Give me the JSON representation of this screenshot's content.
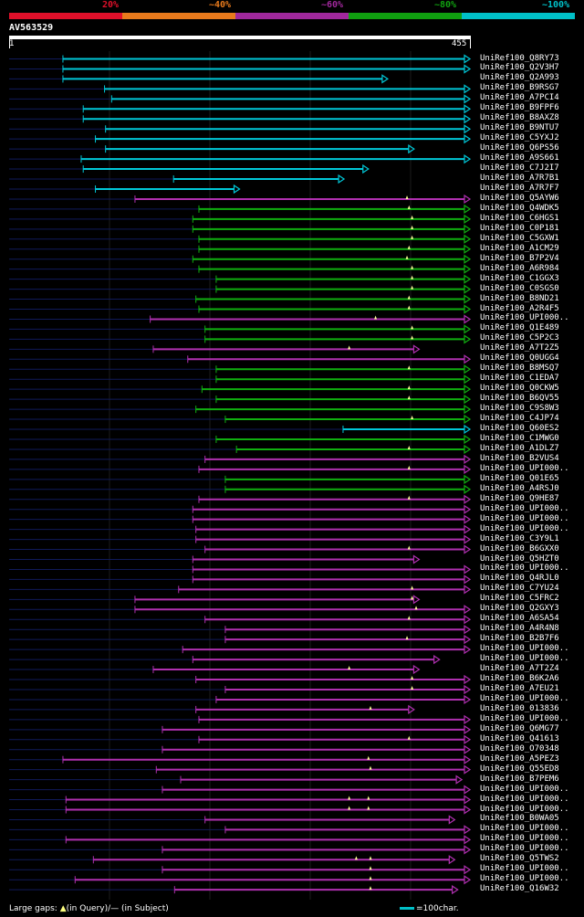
{
  "header": {
    "pct_labels": [
      "20%",
      "~40%",
      "~60%",
      "~80%",
      "~100%"
    ],
    "pct_colors": [
      "#e0102a",
      "#e87a1c",
      "#a0289c",
      "#10a010",
      "#00c0c8"
    ],
    "query_id": "AV563529",
    "ruler_start": "1",
    "ruler_end": "455"
  },
  "colors": {
    "cyan": "#00c8d8",
    "green": "#10b010",
    "purple": "#b030b0",
    "gap_marker": "#ffff99",
    "guide_line": "#101a5a"
  },
  "query_length": 455,
  "hits": [
    {
      "id": "UniRef100_Q8RY73",
      "start": 54,
      "end": 455,
      "color": "cyan",
      "gaps": []
    },
    {
      "id": "UniRef100_Q2V3H7",
      "start": 54,
      "end": 455,
      "color": "cyan",
      "gaps": []
    },
    {
      "id": "UniRef100_Q2A993",
      "start": 54,
      "end": 374,
      "color": "cyan",
      "gaps": []
    },
    {
      "id": "UniRef100_B9RSG7",
      "start": 95,
      "end": 455,
      "color": "cyan",
      "gaps": []
    },
    {
      "id": "UniRef100_A7PCI4",
      "start": 102,
      "end": 455,
      "color": "cyan",
      "gaps": []
    },
    {
      "id": "UniRef100_B9FPF6",
      "start": 74,
      "end": 455,
      "color": "cyan",
      "gaps": []
    },
    {
      "id": "UniRef100_B8AXZ8",
      "start": 74,
      "end": 455,
      "color": "cyan",
      "gaps": []
    },
    {
      "id": "UniRef100_B9NTU7",
      "start": 96,
      "end": 455,
      "color": "cyan",
      "gaps": []
    },
    {
      "id": "UniRef100_C5YXJ2",
      "start": 86,
      "end": 455,
      "color": "cyan",
      "gaps": []
    },
    {
      "id": "UniRef100_Q6PS56",
      "start": 96,
      "end": 400,
      "color": "cyan",
      "gaps": []
    },
    {
      "id": "UniRef100_A9S661",
      "start": 72,
      "end": 455,
      "color": "cyan",
      "gaps": []
    },
    {
      "id": "UniRef100_C7J2I7",
      "start": 74,
      "end": 355,
      "color": "cyan",
      "gaps": []
    },
    {
      "id": "UniRef100_A7R7B1",
      "start": 163,
      "end": 331,
      "color": "cyan",
      "gaps": []
    },
    {
      "id": "UniRef100_A7R7F7",
      "start": 86,
      "end": 228,
      "color": "cyan",
      "gaps": []
    },
    {
      "id": "UniRef100_Q5AYW6",
      "start": 125,
      "end": 455,
      "color": "purple",
      "gaps": [
        393
      ]
    },
    {
      "id": "UniRef100_Q4WDK5",
      "start": 188,
      "end": 455,
      "color": "green",
      "gaps": [
        395
      ]
    },
    {
      "id": "UniRef100_C6HGS1",
      "start": 182,
      "end": 455,
      "color": "green",
      "gaps": [
        398
      ]
    },
    {
      "id": "UniRef100_C0P181",
      "start": 182,
      "end": 455,
      "color": "green",
      "gaps": [
        398
      ]
    },
    {
      "id": "UniRef100_C5GXW1",
      "start": 188,
      "end": 455,
      "color": "green",
      "gaps": [
        398
      ]
    },
    {
      "id": "UniRef100_A1CM29",
      "start": 188,
      "end": 455,
      "color": "green",
      "gaps": [
        395
      ]
    },
    {
      "id": "UniRef100_B7P2V4",
      "start": 182,
      "end": 455,
      "color": "green",
      "gaps": [
        393
      ]
    },
    {
      "id": "UniRef100_A6R984",
      "start": 188,
      "end": 455,
      "color": "green",
      "gaps": [
        398
      ]
    },
    {
      "id": "UniRef100_C1GGX3",
      "start": 205,
      "end": 455,
      "color": "green",
      "gaps": [
        398
      ]
    },
    {
      "id": "UniRef100_C0SGS0",
      "start": 205,
      "end": 455,
      "color": "green",
      "gaps": [
        398
      ]
    },
    {
      "id": "UniRef100_B8ND21",
      "start": 185,
      "end": 455,
      "color": "green",
      "gaps": [
        395
      ]
    },
    {
      "id": "UniRef100_A2R4F5",
      "start": 188,
      "end": 455,
      "color": "green",
      "gaps": [
        395
      ]
    },
    {
      "id": "UniRef100_UPI000..",
      "start": 140,
      "end": 455,
      "color": "purple",
      "gaps": [
        362
      ]
    },
    {
      "id": "UniRef100_Q1E489",
      "start": 194,
      "end": 455,
      "color": "green",
      "gaps": [
        398
      ]
    },
    {
      "id": "UniRef100_C5P2C3",
      "start": 194,
      "end": 455,
      "color": "green",
      "gaps": [
        398
      ]
    },
    {
      "id": "UniRef100_A7T2Z5",
      "start": 143,
      "end": 405,
      "color": "purple",
      "gaps": [
        336
      ]
    },
    {
      "id": "UniRef100_Q0UGG4",
      "start": 177,
      "end": 455,
      "color": "purple",
      "gaps": []
    },
    {
      "id": "UniRef100_B8MSQ7",
      "start": 205,
      "end": 455,
      "color": "green",
      "gaps": [
        395
      ]
    },
    {
      "id": "UniRef100_C1EDA7",
      "start": 205,
      "end": 455,
      "color": "green",
      "gaps": []
    },
    {
      "id": "UniRef100_Q0CKW5",
      "start": 191,
      "end": 455,
      "color": "green",
      "gaps": [
        395
      ]
    },
    {
      "id": "UniRef100_B6QV55",
      "start": 205,
      "end": 455,
      "color": "green",
      "gaps": [
        395
      ]
    },
    {
      "id": "UniRef100_C9S8W3",
      "start": 185,
      "end": 455,
      "color": "green",
      "gaps": []
    },
    {
      "id": "UniRef100_C4JP74",
      "start": 214,
      "end": 455,
      "color": "green",
      "gaps": [
        398
      ]
    },
    {
      "id": "UniRef100_Q60ES2",
      "start": 330,
      "end": 455,
      "color": "cyan",
      "gaps": []
    },
    {
      "id": "UniRef100_C1MWG0",
      "start": 205,
      "end": 455,
      "color": "green",
      "gaps": []
    },
    {
      "id": "UniRef100_A1DLZ7",
      "start": 225,
      "end": 455,
      "color": "green",
      "gaps": [
        395
      ]
    },
    {
      "id": "UniRef100_B2VUS4",
      "start": 194,
      "end": 455,
      "color": "purple",
      "gaps": []
    },
    {
      "id": "UniRef100_UPI000..",
      "start": 188,
      "end": 455,
      "color": "purple",
      "gaps": [
        395
      ]
    },
    {
      "id": "UniRef100_Q01E65",
      "start": 214,
      "end": 455,
      "color": "green",
      "gaps": []
    },
    {
      "id": "UniRef100_A4RSJ0",
      "start": 214,
      "end": 455,
      "color": "green",
      "gaps": []
    },
    {
      "id": "UniRef100_Q9HE87",
      "start": 188,
      "end": 455,
      "color": "purple",
      "gaps": [
        395
      ]
    },
    {
      "id": "UniRef100_UPI000..",
      "start": 182,
      "end": 455,
      "color": "purple",
      "gaps": []
    },
    {
      "id": "UniRef100_UPI000..",
      "start": 182,
      "end": 455,
      "color": "purple",
      "gaps": []
    },
    {
      "id": "UniRef100_UPI000..",
      "start": 185,
      "end": 455,
      "color": "purple",
      "gaps": []
    },
    {
      "id": "UniRef100_C3Y9L1",
      "start": 185,
      "end": 455,
      "color": "purple",
      "gaps": []
    },
    {
      "id": "UniRef100_B6GXX0",
      "start": 194,
      "end": 455,
      "color": "purple",
      "gaps": [
        395
      ]
    },
    {
      "id": "UniRef100_Q5HZT0",
      "start": 182,
      "end": 405,
      "color": "purple",
      "gaps": []
    },
    {
      "id": "UniRef100_UPI000..",
      "start": 182,
      "end": 455,
      "color": "purple",
      "gaps": []
    },
    {
      "id": "UniRef100_Q4RJL0",
      "start": 182,
      "end": 455,
      "color": "purple",
      "gaps": []
    },
    {
      "id": "UniRef100_C7YU24",
      "start": 168,
      "end": 455,
      "color": "purple",
      "gaps": [
        398
      ]
    },
    {
      "id": "UniRef100_C5FRC2",
      "start": 125,
      "end": 405,
      "color": "purple",
      "gaps": [
        398
      ]
    },
    {
      "id": "UniRef100_Q2GXY3",
      "start": 125,
      "end": 455,
      "color": "purple",
      "gaps": [
        402
      ]
    },
    {
      "id": "UniRef100_A6SA54",
      "start": 194,
      "end": 455,
      "color": "purple",
      "gaps": [
        395
      ]
    },
    {
      "id": "UniRef100_A4R4N8",
      "start": 214,
      "end": 455,
      "color": "purple",
      "gaps": []
    },
    {
      "id": "UniRef100_B2B7F6",
      "start": 214,
      "end": 455,
      "color": "purple",
      "gaps": [
        393
      ]
    },
    {
      "id": "UniRef100_UPI000..",
      "start": 172,
      "end": 455,
      "color": "purple",
      "gaps": []
    },
    {
      "id": "UniRef100_UPI000..",
      "start": 182,
      "end": 425,
      "color": "purple",
      "gaps": []
    },
    {
      "id": "UniRef100_A7T2Z4",
      "start": 143,
      "end": 405,
      "color": "purple",
      "gaps": [
        336
      ]
    },
    {
      "id": "UniRef100_B6K2A6",
      "start": 185,
      "end": 455,
      "color": "purple",
      "gaps": [
        398
      ]
    },
    {
      "id": "UniRef100_A7EU21",
      "start": 214,
      "end": 455,
      "color": "purple",
      "gaps": [
        398
      ]
    },
    {
      "id": "UniRef100_UPI000..",
      "start": 205,
      "end": 455,
      "color": "purple",
      "gaps": []
    },
    {
      "id": "UniRef100_013836",
      "start": 185,
      "end": 400,
      "color": "purple",
      "gaps": [
        357
      ]
    },
    {
      "id": "UniRef100_UPI000..",
      "start": 188,
      "end": 455,
      "color": "purple",
      "gaps": []
    },
    {
      "id": "UniRef100_Q6MG77",
      "start": 152,
      "end": 455,
      "color": "purple",
      "gaps": []
    },
    {
      "id": "UniRef100_Q41613",
      "start": 188,
      "end": 455,
      "color": "purple",
      "gaps": [
        395
      ]
    },
    {
      "id": "UniRef100_O70348",
      "start": 152,
      "end": 455,
      "color": "purple",
      "gaps": []
    },
    {
      "id": "UniRef100_A5PEZ3",
      "start": 54,
      "end": 455,
      "color": "purple",
      "gaps": [
        355
      ]
    },
    {
      "id": "UniRef100_Q55ED8",
      "start": 146,
      "end": 455,
      "color": "purple",
      "gaps": [
        357
      ]
    },
    {
      "id": "UniRef100_B7PEM6",
      "start": 170,
      "end": 447,
      "color": "purple",
      "gaps": []
    },
    {
      "id": "UniRef100_UPI000..",
      "start": 152,
      "end": 455,
      "color": "purple",
      "gaps": []
    },
    {
      "id": "UniRef100_UPI000..",
      "start": 57,
      "end": 455,
      "color": "purple",
      "gaps": [
        336,
        355
      ]
    },
    {
      "id": "UniRef100_UPI000..",
      "start": 57,
      "end": 455,
      "color": "purple",
      "gaps": [
        336,
        355
      ]
    },
    {
      "id": "UniRef100_B0WA05",
      "start": 194,
      "end": 440,
      "color": "purple",
      "gaps": []
    },
    {
      "id": "UniRef100_UPI000..",
      "start": 214,
      "end": 455,
      "color": "purple",
      "gaps": []
    },
    {
      "id": "UniRef100_UPI000..",
      "start": 57,
      "end": 455,
      "color": "purple",
      "gaps": []
    },
    {
      "id": "UniRef100_UPI000..",
      "start": 152,
      "end": 455,
      "color": "purple",
      "gaps": []
    },
    {
      "id": "UniRef100_Q5TWS2",
      "start": 84,
      "end": 440,
      "color": "purple",
      "gaps": [
        343,
        357
      ]
    },
    {
      "id": "UniRef100_UPI000..",
      "start": 152,
      "end": 455,
      "color": "purple",
      "gaps": [
        357
      ]
    },
    {
      "id": "UniRef100_UPI000..",
      "start": 66,
      "end": 455,
      "color": "purple",
      "gaps": [
        357
      ]
    },
    {
      "id": "UniRef100_Q16W32",
      "start": 164,
      "end": 443,
      "color": "purple",
      "gaps": [
        357
      ]
    }
  ],
  "footer": {
    "large_gaps_prefix": "Large gaps:",
    "in_query": "(in Query)/",
    "dash": "—",
    "in_subject": " (in Subject)",
    "scale_text": "=100char."
  }
}
